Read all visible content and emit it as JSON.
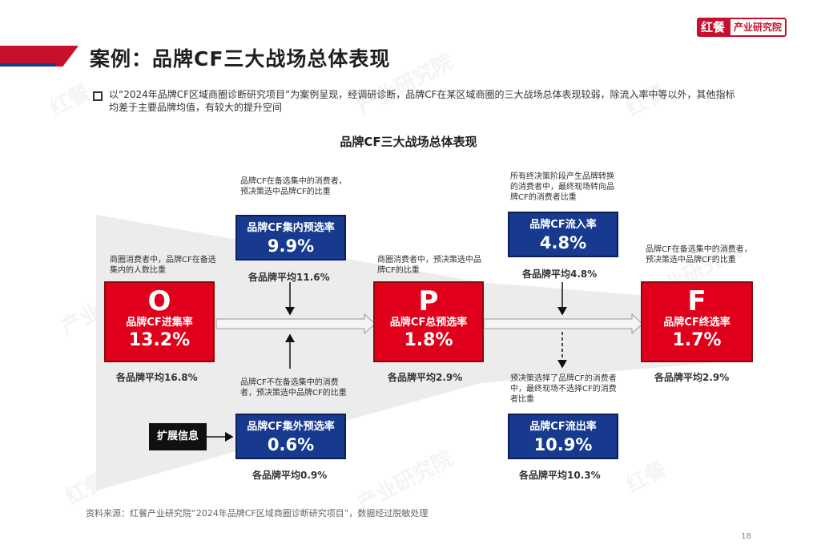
{
  "header": {
    "title": "案例：品牌CF三大战场总体表现",
    "logo_red": "红餐",
    "logo_white": "产业研究院"
  },
  "intro": "以“2024年品牌CF区域商圈诊断研究项目”为案例呈现，经调研诊断，品牌CF在某区域商圈的三大战场总体表现较弱，除流入率中等以外，其他指标均差于主要品牌均值，有较大的提升空间",
  "diagram": {
    "title": "品牌CF三大战场总体表现",
    "stages": [
      {
        "letter": "O",
        "label": "品牌CF进集率",
        "value": "13.2%",
        "note": "商圈消费者中，品牌CF在备选集内的人数比重",
        "avg": "各品牌平均16.8%"
      },
      {
        "letter": "P",
        "label": "品牌CF总预选率",
        "value": "1.8%",
        "note": "商圈消费者中，预决策选中品牌CF的比重",
        "avg": "各品牌平均2.9%"
      },
      {
        "letter": "F",
        "label": "品牌CF终选率",
        "value": "1.7%",
        "note": "品牌CF在备选集中的消费者，预决策选中品牌CF的比重",
        "avg": "各品牌平均2.9%"
      }
    ],
    "metrics": {
      "inner": {
        "label": "品牌CF集内预选率",
        "value": "9.9%",
        "note": "品牌CF在备选集中的消费者，预决策选中品牌CF的比重",
        "avg": "各品牌平均11.6%"
      },
      "outer": {
        "label": "品牌CF集外预选率",
        "value": "0.6%",
        "note": "品牌CF不在备选集中的消费者，预决策选中品牌CF的比重",
        "avg": "各品牌平均0.9%"
      },
      "inflow": {
        "label": "品牌CF流入率",
        "value": "4.8%",
        "note": "所有终决策阶段产生品牌转换的消费者中，最终现场转向品牌CF的消费者比重",
        "avg": "各品牌平均4.8%"
      },
      "outflow": {
        "label": "品牌CF流出率",
        "value": "10.9%",
        "note": "预决策选择了品牌CF的消费者中，最终现场不选择CF的消费者比重",
        "avg": "各品牌平均10.3%"
      }
    },
    "extension": "扩展信息"
  },
  "source": "资料来源：红餐产业研究院“2024年品牌CF区域商圈诊断研究项目”，数据经过脱敏处理",
  "page_number": "18",
  "colors": {
    "red": "#e0001b",
    "blue": "#173a8f",
    "brand_red": "#c8102e"
  }
}
